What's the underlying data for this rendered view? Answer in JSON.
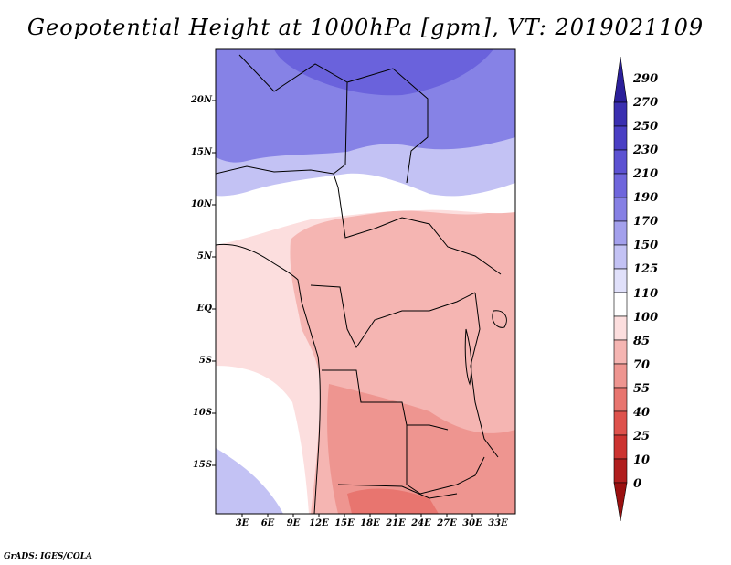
{
  "title": "Geopotential Height at 1000hPa [gpm], VT: 2019021109",
  "map": {
    "variable": "Geopotential Height at 1000hPa",
    "units": "gpm",
    "valid_time": "2019021109",
    "lat_labels": [
      "20N",
      "15N",
      "10N",
      "5N",
      "EQ",
      "5S",
      "10S",
      "15S"
    ],
    "lon_labels": [
      "3E",
      "6E",
      "9E",
      "12E",
      "15E",
      "18E",
      "21E",
      "24E",
      "27E",
      "30E",
      "33E"
    ],
    "colorbar": {
      "labels": [
        "290",
        "270",
        "250",
        "230",
        "210",
        "190",
        "170",
        "150",
        "125",
        "110",
        "100",
        "85",
        "70",
        "55",
        "40",
        "25",
        "10",
        "0"
      ],
      "colors": [
        "#2b1f9a",
        "#3a2fb0",
        "#4a3fc4",
        "#5c52d2",
        "#6f66dc",
        "#8680e4",
        "#a3a0ec",
        "#c3c2f4",
        "#e0e0fa",
        "#ffffff",
        "#fcdede",
        "#f5b5b2",
        "#ee9590",
        "#e8756f",
        "#de524c",
        "#cc3330",
        "#b01e1e",
        "#9a1010"
      ]
    },
    "colors": {
      "north_high": "#8682e6",
      "far_north": "#6a62dc",
      "mid": "#c3c2f4",
      "neutral": "#ffffff",
      "low_pink": "#fcdede",
      "low_salmon": "#f5b5b2",
      "lower": "#ee9590",
      "lowest": "#e8756f"
    }
  },
  "footer": {
    "credit": "GrADS: IGES/COLA"
  }
}
